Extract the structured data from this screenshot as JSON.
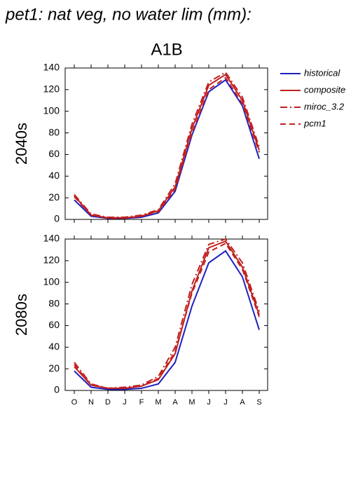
{
  "title": "pet1: nat veg, no water lim (mm):",
  "scenario": "A1B",
  "chart_data": [
    {
      "type": "line",
      "ylabel": "2040s",
      "ylim": [
        0,
        140
      ],
      "yticks": [
        0,
        20,
        40,
        60,
        80,
        100,
        120,
        140
      ],
      "series": [
        {
          "name": "historical",
          "color": "#1f1fbf",
          "dash": "solid",
          "values": [
            18,
            3,
            1,
            1,
            2,
            6,
            26,
            78,
            118,
            129,
            105,
            56
          ]
        },
        {
          "name": "composite",
          "color": "#c02020",
          "dash": "solid",
          "values": [
            22,
            4,
            1.5,
            1.5,
            3,
            8,
            30,
            84,
            124,
            134,
            110,
            64
          ]
        },
        {
          "name": "miroc_3.2",
          "color": "#c02020",
          "dash": "dashdot",
          "values": [
            23,
            5,
            2,
            2,
            4,
            9,
            33,
            88,
            127,
            136,
            113,
            67
          ]
        },
        {
          "name": "pcm1",
          "color": "#c02020",
          "dash": "dashed",
          "values": [
            21,
            4,
            1,
            1,
            3,
            7,
            28,
            80,
            120,
            131,
            107,
            62
          ]
        }
      ]
    },
    {
      "type": "line",
      "ylabel": "2080s",
      "ylim": [
        0,
        140
      ],
      "yticks": [
        0,
        20,
        40,
        60,
        80,
        100,
        120,
        140
      ],
      "categories": [
        "O",
        "N",
        "D",
        "J",
        "F",
        "M",
        "A",
        "M",
        "J",
        "J",
        "A",
        "S"
      ],
      "series": [
        {
          "color": "#1f1fbf",
          "dash": "solid",
          "values": [
            18,
            3,
            1,
            1,
            2,
            6,
            26,
            78,
            118,
            129,
            105,
            56
          ]
        },
        {
          "color": "#c02020",
          "dash": "solid",
          "values": [
            22,
            5,
            2,
            2,
            4,
            10,
            34,
            92,
            132,
            138,
            114,
            70
          ]
        },
        {
          "color": "#c02020",
          "dash": "dashdot",
          "values": [
            26,
            6,
            2,
            3,
            5,
            13,
            40,
            98,
            135,
            140,
            118,
            73
          ]
        },
        {
          "color": "#c02020",
          "dash": "dashed",
          "values": [
            24,
            5,
            2,
            2,
            4,
            11,
            36,
            90,
            128,
            136,
            112,
            68
          ]
        }
      ]
    }
  ]
}
